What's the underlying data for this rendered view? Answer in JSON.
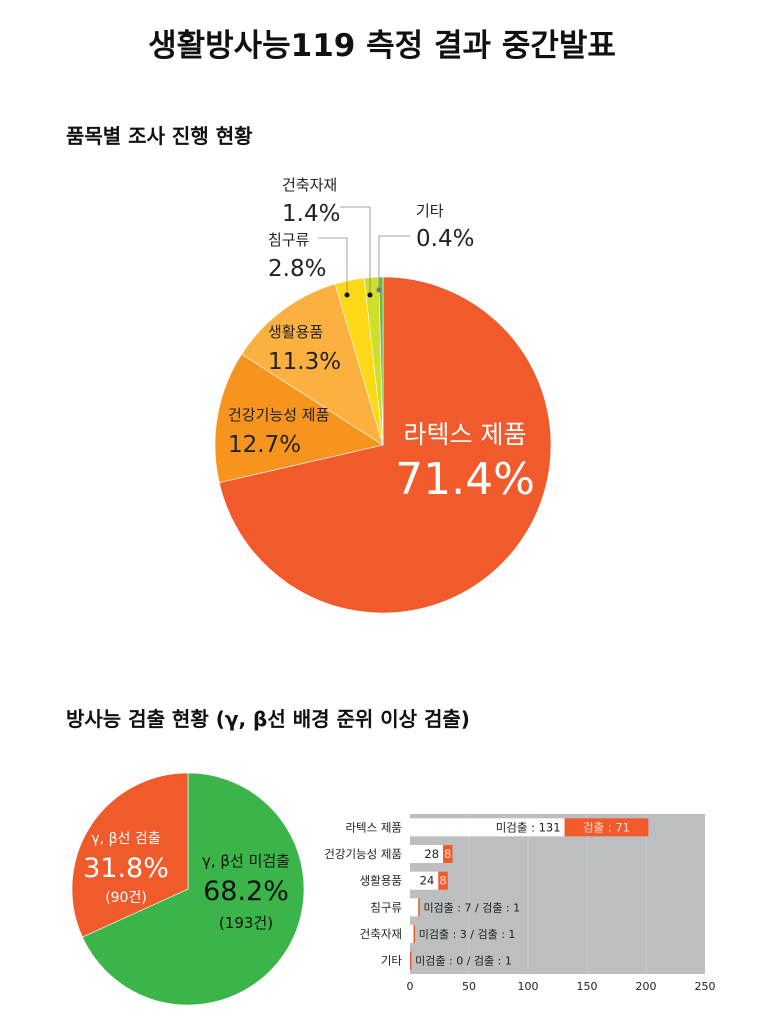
{
  "title": "생활방사능119 측정 결과 중간발표",
  "chart_data": [
    {
      "type": "pie",
      "title": "품목별 조사 진행 현황",
      "slices": [
        {
          "label": "라텍스 제품",
          "value": 71.4,
          "display": "71.4%",
          "color": "#f15a2b"
        },
        {
          "label": "건강기능성 제품",
          "value": 12.7,
          "display": "12.7%",
          "color": "#f7941d"
        },
        {
          "label": "생활용품",
          "value": 11.3,
          "display": "11.3%",
          "color": "#fbb040"
        },
        {
          "label": "침구류",
          "value": 2.8,
          "display": "2.8%",
          "color": "#fdd816"
        },
        {
          "label": "건축자재",
          "value": 1.4,
          "display": "1.4%",
          "color": "#cfdd2b"
        },
        {
          "label": "기타",
          "value": 0.4,
          "display": "0.4%",
          "color": "#6cb84a"
        }
      ]
    },
    {
      "type": "pie",
      "title": "방사능 검출 현황 (γ, β선 배경 준위 이상 검출)",
      "slices": [
        {
          "label": "γ, β선 미검출",
          "value": 68.2,
          "display": "68.2%",
          "count": "(193건)",
          "color": "#3bb54a"
        },
        {
          "label": "γ, β선 검출",
          "value": 31.8,
          "display": "31.8%",
          "count": "(90건)",
          "color": "#f15a2b"
        }
      ]
    },
    {
      "type": "bar",
      "stacked": true,
      "orientation": "horizontal",
      "categories": [
        "라텍스 제품",
        "건강기능성 제품",
        "생활용품",
        "침구류",
        "건축자재",
        "기타"
      ],
      "series": [
        {
          "name": "미검출",
          "values": [
            131,
            28,
            24,
            7,
            3,
            0
          ],
          "color": "#ffffff"
        },
        {
          "name": "검출",
          "values": [
            71,
            8,
            8,
            1,
            1,
            1
          ],
          "color": "#f15a2b"
        }
      ],
      "bar_labels": [
        [
          "미검출 : 131",
          "검출 : 71"
        ],
        [
          "28",
          "8"
        ],
        [
          "24",
          "8"
        ],
        [
          "미검출 : 7 / 검출 : 1"
        ],
        [
          "미검출 : 3 / 검출 : 1"
        ],
        [
          "미검출 : 0 / 검출 : 1"
        ]
      ],
      "xlim": [
        0,
        250
      ],
      "xticks": [
        "0",
        "50",
        "100",
        "150",
        "200",
        "250"
      ],
      "background": "#bcbec0"
    }
  ]
}
